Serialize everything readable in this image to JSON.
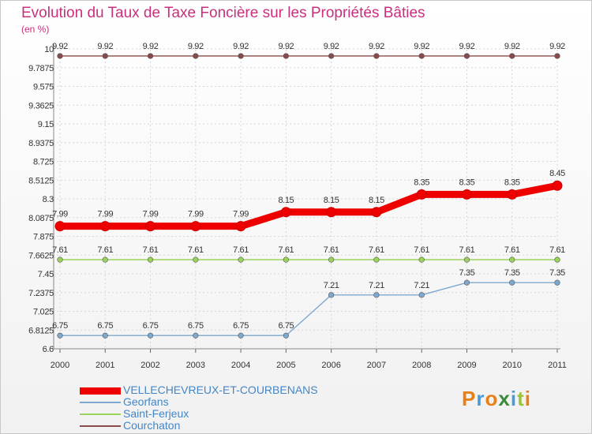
{
  "chart_data": {
    "type": "line",
    "title": "Evolution du Taux de Taxe Foncière sur les Propriétés Bâties",
    "ylabel": "(en %)",
    "xlabel": "",
    "ylim": [
      6.6,
      10
    ],
    "yticks": [
      "10",
      "9.7875",
      "9.575",
      "9.3625",
      "9.15",
      "8.9375",
      "8.725",
      "8.5125",
      "8.3",
      "8.0875",
      "7.875",
      "7.6625",
      "7.45",
      "7.2375",
      "7.025",
      "6.8125",
      "6.6"
    ],
    "categories": [
      "2000",
      "2001",
      "2002",
      "2003",
      "2004",
      "2005",
      "2006",
      "2007",
      "2008",
      "2009",
      "2010",
      "2011"
    ],
    "series": [
      {
        "name": "VELLECHEVREUX-ET-COURBENANS",
        "color": "#ee0000",
        "values": [
          7.99,
          7.99,
          7.99,
          7.99,
          7.99,
          8.15,
          8.15,
          8.15,
          8.35,
          8.35,
          8.35,
          8.45
        ],
        "labels": [
          "7.99",
          "7.99",
          "7.99",
          "7.99",
          "7.99",
          "8.15",
          "8.15",
          "8.15",
          "8.35",
          "8.35",
          "8.35",
          "8.45"
        ]
      },
      {
        "name": "Georfans",
        "color": "#7fa8d0",
        "values": [
          6.75,
          6.75,
          6.75,
          6.75,
          6.75,
          6.75,
          7.21,
          7.21,
          7.21,
          7.35,
          7.35,
          7.35
        ],
        "labels": [
          "6.75",
          "6.75",
          "6.75",
          "6.75",
          "6.75",
          "6.75",
          "7.21",
          "7.21",
          "7.21",
          "7.35",
          "7.35",
          "7.35"
        ]
      },
      {
        "name": "Saint-Ferjeux",
        "color": "#9ad35a",
        "values": [
          7.61,
          7.61,
          7.61,
          7.61,
          7.61,
          7.61,
          7.61,
          7.61,
          7.61,
          7.61,
          7.61,
          7.61
        ],
        "labels": [
          "7.61",
          "7.61",
          "7.61",
          "7.61",
          "7.61",
          "7.61",
          "7.61",
          "7.61",
          "7.61",
          "7.61",
          "7.61",
          "7.61"
        ]
      },
      {
        "name": "Courchaton",
        "color": "#8b4a4a",
        "values": [
          9.92,
          9.92,
          9.92,
          9.92,
          9.92,
          9.92,
          9.92,
          9.92,
          9.92,
          9.92,
          9.92,
          9.92
        ],
        "labels": [
          "9.92",
          "9.92",
          "9.92",
          "9.92",
          "9.92",
          "9.92",
          "9.92",
          "9.92",
          "9.92",
          "9.92",
          "9.92",
          "9.92"
        ]
      }
    ]
  },
  "logo": {
    "text": "Proxiti"
  }
}
